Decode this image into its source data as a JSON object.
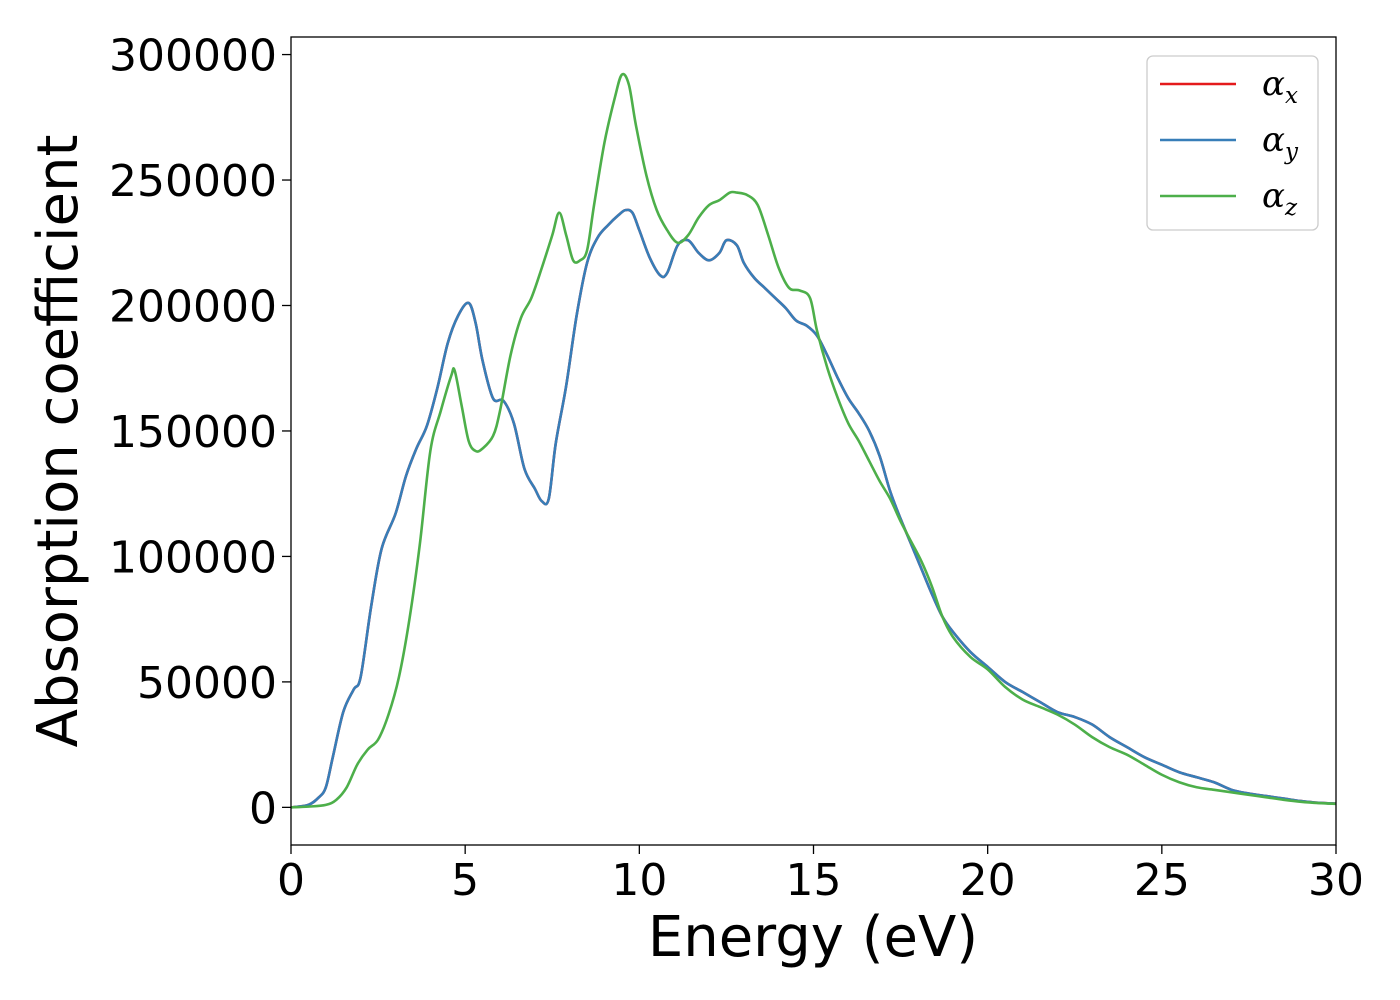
{
  "chart_data": {
    "type": "line",
    "title": "",
    "xlabel": "Energy (eV)",
    "ylabel": "Absorption coefficient",
    "xlim": [
      0,
      30
    ],
    "ylim": [
      -15000,
      307000
    ],
    "xticks": [
      "0",
      "5",
      "10",
      "15",
      "20",
      "25",
      "30"
    ],
    "yticks": [
      "0",
      "50000",
      "100000",
      "150000",
      "200000",
      "250000",
      "300000"
    ],
    "grid": false,
    "legend_position": "top-right",
    "series": [
      {
        "name": "α",
        "subscript": "x",
        "color": "#e41a1c",
        "x": [
          0,
          0.5,
          0.8,
          1.0,
          1.2,
          1.5,
          1.8,
          2.0,
          2.3,
          2.6,
          3.0,
          3.3,
          3.6,
          3.9,
          4.2,
          4.5,
          4.8,
          5.1,
          5.3,
          5.5,
          5.8,
          6.1,
          6.4,
          6.7,
          7.0,
          7.2,
          7.4,
          7.6,
          7.9,
          8.2,
          8.5,
          8.8,
          9.1,
          9.4,
          9.6,
          9.8,
          10.0,
          10.3,
          10.6,
          10.8,
          11.1,
          11.4,
          11.7,
          12.0,
          12.3,
          12.5,
          12.8,
          13.0,
          13.3,
          13.6,
          13.9,
          14.2,
          14.5,
          14.8,
          15.1,
          15.4,
          15.7,
          16.0,
          16.3,
          16.6,
          16.9,
          17.2,
          17.5,
          17.8,
          18.1,
          18.4,
          18.7,
          19.0,
          19.5,
          20.0,
          20.5,
          21.0,
          21.5,
          22.0,
          22.5,
          23.0,
          23.5,
          24.0,
          24.5,
          25.0,
          25.5,
          26.0,
          26.5,
          27.0,
          27.5,
          28.0,
          28.5,
          29.0,
          29.5,
          30.0
        ],
        "y": [
          0,
          1000,
          4000,
          8000,
          20000,
          38000,
          47000,
          52000,
          80000,
          103000,
          117000,
          132000,
          143000,
          152000,
          167000,
          185000,
          196000,
          201000,
          193000,
          178000,
          163000,
          162000,
          153000,
          135000,
          127000,
          122000,
          123000,
          145000,
          168000,
          196000,
          217000,
          227000,
          232000,
          236000,
          238000,
          237000,
          230000,
          219000,
          212000,
          213000,
          224000,
          226000,
          221000,
          218000,
          221000,
          226000,
          224000,
          217000,
          211000,
          207000,
          203000,
          199000,
          194000,
          192000,
          188000,
          180000,
          171000,
          163000,
          157000,
          150000,
          140000,
          126000,
          115000,
          105000,
          95000,
          85000,
          76000,
          70000,
          62000,
          56000,
          50000,
          46000,
          42000,
          38000,
          36000,
          33000,
          28000,
          24000,
          20000,
          17000,
          14000,
          12000,
          10000,
          7000,
          5500,
          4500,
          3500,
          2500,
          1800,
          1500
        ]
      },
      {
        "name": "α",
        "subscript": "y",
        "color": "#377eb8",
        "x": [
          0,
          0.5,
          0.8,
          1.0,
          1.2,
          1.5,
          1.8,
          2.0,
          2.3,
          2.6,
          3.0,
          3.3,
          3.6,
          3.9,
          4.2,
          4.5,
          4.8,
          5.1,
          5.3,
          5.5,
          5.8,
          6.1,
          6.4,
          6.7,
          7.0,
          7.2,
          7.4,
          7.6,
          7.9,
          8.2,
          8.5,
          8.8,
          9.1,
          9.4,
          9.6,
          9.8,
          10.0,
          10.3,
          10.6,
          10.8,
          11.1,
          11.4,
          11.7,
          12.0,
          12.3,
          12.5,
          12.8,
          13.0,
          13.3,
          13.6,
          13.9,
          14.2,
          14.5,
          14.8,
          15.1,
          15.4,
          15.7,
          16.0,
          16.3,
          16.6,
          16.9,
          17.2,
          17.5,
          17.8,
          18.1,
          18.4,
          18.7,
          19.0,
          19.5,
          20.0,
          20.5,
          21.0,
          21.5,
          22.0,
          22.5,
          23.0,
          23.5,
          24.0,
          24.5,
          25.0,
          25.5,
          26.0,
          26.5,
          27.0,
          27.5,
          28.0,
          28.5,
          29.0,
          29.5,
          30.0
        ],
        "y": [
          0,
          1000,
          4000,
          8000,
          20000,
          38000,
          47000,
          52000,
          80000,
          103000,
          117000,
          132000,
          143000,
          152000,
          167000,
          185000,
          196000,
          201000,
          193000,
          178000,
          163000,
          162000,
          153000,
          135000,
          127000,
          122000,
          123000,
          145000,
          168000,
          196000,
          217000,
          227000,
          232000,
          236000,
          238000,
          237000,
          230000,
          219000,
          212000,
          213000,
          224000,
          226000,
          221000,
          218000,
          221000,
          226000,
          224000,
          217000,
          211000,
          207000,
          203000,
          199000,
          194000,
          192000,
          188000,
          180000,
          171000,
          163000,
          157000,
          150000,
          140000,
          126000,
          115000,
          105000,
          95000,
          85000,
          76000,
          70000,
          62000,
          56000,
          50000,
          46000,
          42000,
          38000,
          36000,
          33000,
          28000,
          24000,
          20000,
          17000,
          14000,
          12000,
          10000,
          7000,
          5500,
          4500,
          3500,
          2500,
          1800,
          1500
        ]
      },
      {
        "name": "α",
        "subscript": "z",
        "color": "#4daf4a",
        "x": [
          0,
          0.5,
          1.0,
          1.3,
          1.6,
          1.9,
          2.2,
          2.5,
          2.8,
          3.1,
          3.4,
          3.7,
          4.0,
          4.3,
          4.6,
          4.7,
          4.9,
          5.1,
          5.3,
          5.5,
          5.8,
          6.0,
          6.3,
          6.6,
          6.9,
          7.2,
          7.5,
          7.7,
          7.9,
          8.1,
          8.3,
          8.5,
          8.7,
          9.0,
          9.3,
          9.5,
          9.7,
          9.9,
          10.2,
          10.5,
          10.8,
          11.1,
          11.4,
          11.7,
          12.0,
          12.3,
          12.6,
          12.8,
          13.1,
          13.4,
          13.7,
          14.0,
          14.3,
          14.6,
          14.9,
          15.1,
          15.4,
          15.7,
          16.0,
          16.3,
          16.6,
          16.9,
          17.2,
          17.5,
          17.8,
          18.1,
          18.4,
          18.7,
          19.0,
          19.5,
          20.0,
          20.5,
          21.0,
          21.5,
          22.0,
          22.5,
          23.0,
          23.5,
          24.0,
          24.5,
          25.0,
          25.5,
          26.0,
          26.5,
          27.0,
          27.5,
          28.0,
          28.5,
          29.0,
          29.5,
          30.0
        ],
        "y": [
          0,
          300,
          1000,
          3000,
          8000,
          17000,
          23000,
          27000,
          37000,
          52000,
          75000,
          105000,
          142000,
          158000,
          172000,
          174000,
          160000,
          146000,
          142000,
          143000,
          148000,
          158000,
          180000,
          195000,
          203000,
          215000,
          228000,
          237000,
          228000,
          218000,
          218000,
          222000,
          240000,
          265000,
          283000,
          292000,
          288000,
          272000,
          252000,
          238000,
          230000,
          225000,
          228000,
          235000,
          240000,
          242000,
          245000,
          245000,
          244000,
          240000,
          228000,
          215000,
          207000,
          206000,
          203000,
          190000,
          175000,
          163000,
          153000,
          146000,
          138000,
          130000,
          123000,
          114000,
          106000,
          98000,
          88000,
          76000,
          68000,
          60000,
          55000,
          48000,
          43000,
          40000,
          37000,
          33000,
          28000,
          24000,
          21000,
          17000,
          13000,
          10000,
          8000,
          7000,
          6000,
          5000,
          4000,
          3000,
          2200,
          1700,
          1400
        ]
      }
    ]
  }
}
